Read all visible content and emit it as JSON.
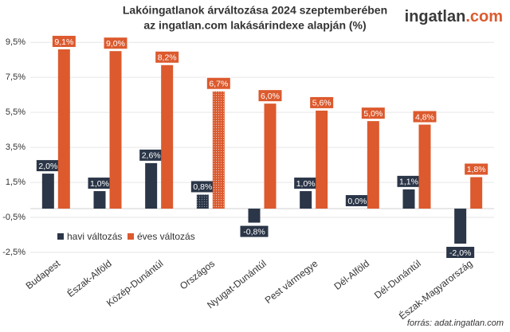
{
  "chart_data": {
    "type": "bar",
    "title": "Lakóingatlanok árváltozása 2024 szeptemberében",
    "subtitle": "az ingatlan.com lakásárindexe alapján (%)",
    "logo": {
      "main": "ingatlan",
      "suffix": ".com"
    },
    "source": "forrás: adat.ingatlan.com",
    "categories": [
      "Budapest",
      "Észak-Alföld",
      "Közép-Dunántúl",
      "Országos",
      "Nyugat-Dunántúl",
      "Pest vármegye",
      "Dél-Alföld",
      "Dél-Dunántúl",
      "Észak-Magyarország"
    ],
    "highlight_category": "Országos",
    "series": [
      {
        "name": "havi változás",
        "color": "#2b3648",
        "values": [
          2.0,
          1.0,
          2.6,
          0.8,
          -0.8,
          1.0,
          0.0,
          1.1,
          -2.0
        ],
        "value_labels": [
          "2,0%",
          "1,0%",
          "2,6%",
          "0,8%",
          "-0,8%",
          "1,0%",
          "0,0%",
          "1,1%",
          "-2,0%"
        ]
      },
      {
        "name": "éves változás",
        "color": "#dc5a2e",
        "values": [
          9.1,
          9.0,
          8.2,
          6.7,
          6.0,
          5.6,
          5.0,
          4.8,
          1.8
        ],
        "value_labels": [
          "9,1%",
          "9,0%",
          "8,2%",
          "6,7%",
          "6,0%",
          "5,6%",
          "5,0%",
          "4,8%",
          "1,8%"
        ]
      }
    ],
    "ylim": [
      -2.5,
      10.1
    ],
    "yticks": [
      {
        "value": -2.5,
        "label": "-2,5%"
      },
      {
        "value": -0.5,
        "label": "-0,5%"
      },
      {
        "value": 1.5,
        "label": "1,5%"
      },
      {
        "value": 3.5,
        "label": "3,5%"
      },
      {
        "value": 5.5,
        "label": "5,5%"
      },
      {
        "value": 7.5,
        "label": "7,5%"
      },
      {
        "value": 9.5,
        "label": "9,5%"
      }
    ],
    "grid": true,
    "legend": "lower left"
  }
}
